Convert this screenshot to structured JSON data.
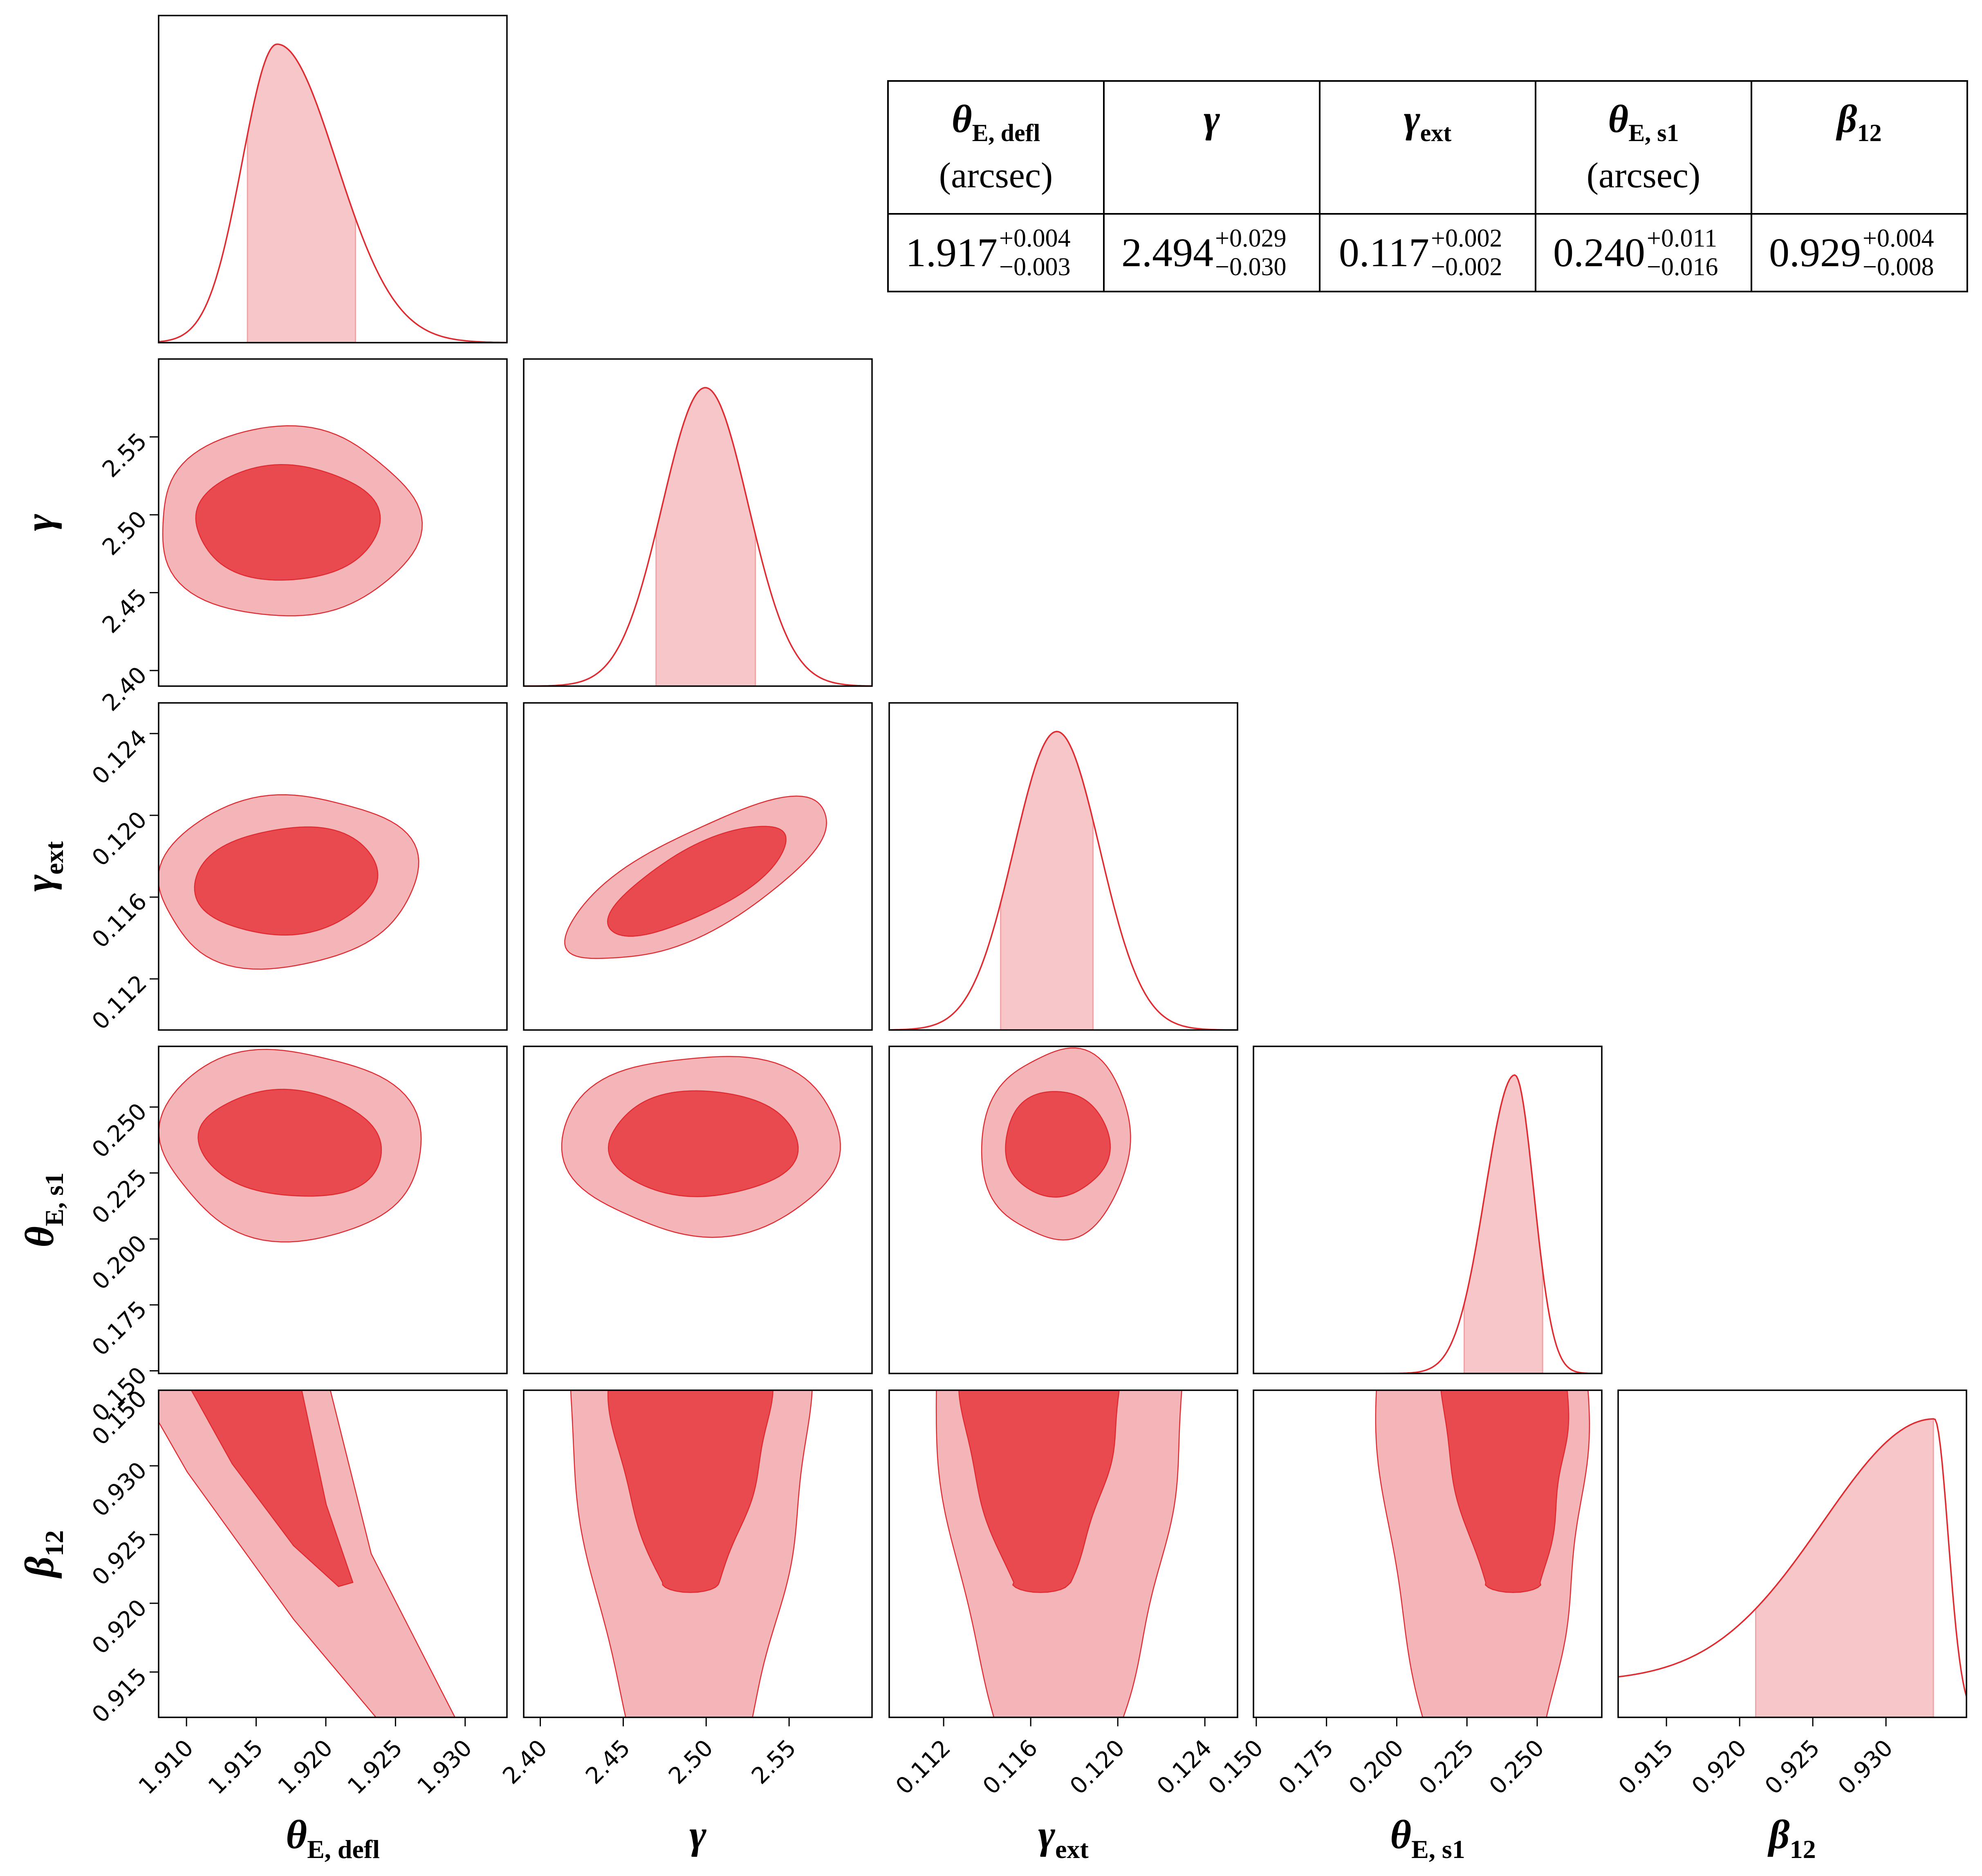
{
  "chart_data": {
    "type": "corner",
    "parameters": [
      {
        "id": "theta_E_defl",
        "symbol": "θ",
        "subscript": "E, defl",
        "range": [
          1.908,
          1.933
        ],
        "ticks": [
          "1.910",
          "1.915",
          "1.920",
          "1.925",
          "1.930"
        ],
        "tick_values": [
          1.91,
          1.915,
          1.92,
          1.925,
          1.93
        ],
        "median": 1.917,
        "upper_err": "+0.004",
        "lower_err": "−0.003",
        "unit": "(arcsec)",
        "shade": [
          1.9143,
          1.9222
        ],
        "peak": 1.9165,
        "skew": 1.6
      },
      {
        "id": "gamma",
        "symbol": "γ",
        "subscript": "",
        "range": [
          2.39,
          2.6
        ],
        "ticks": [
          "2.40",
          "2.45",
          "2.50",
          "2.55"
        ],
        "tick_values": [
          2.4,
          2.45,
          2.5,
          2.55
        ],
        "median": 2.494,
        "upper_err": "+0.029",
        "lower_err": "−0.030",
        "unit": "",
        "shade": [
          2.469,
          2.53
        ],
        "peak": 2.4995,
        "skew": 1.0
      },
      {
        "id": "gamma_ext",
        "symbol": "γ",
        "subscript": "ext",
        "range": [
          0.1095,
          0.1255
        ],
        "ticks": [
          "0.112",
          "0.116",
          "0.120",
          "0.124"
        ],
        "tick_values": [
          0.112,
          0.116,
          0.12,
          0.124
        ],
        "median": 0.117,
        "upper_err": "+0.002",
        "lower_err": "−0.002",
        "unit": "",
        "shade": [
          0.1146,
          0.1189
        ],
        "peak": 0.1172,
        "skew": 1.0
      },
      {
        "id": "theta_E_s1",
        "symbol": "θ",
        "subscript": "E, s1",
        "range": [
          0.149,
          0.273
        ],
        "ticks": [
          "0.150",
          "0.175",
          "0.200",
          "0.225",
          "0.250"
        ],
        "tick_values": [
          0.15,
          0.175,
          0.2,
          0.225,
          0.25
        ],
        "median": 0.24,
        "upper_err": "+0.011",
        "lower_err": "−0.016",
        "unit": "(arcsec)",
        "shade": [
          0.224,
          0.252
        ],
        "peak": 0.242,
        "skew": 0.55
      },
      {
        "id": "beta_12",
        "symbol": "β",
        "subscript": "12",
        "range": [
          0.9117,
          0.9355
        ],
        "ticks": [
          "0.915",
          "0.920",
          "0.925",
          "0.930"
        ],
        "tick_values": [
          0.915,
          0.92,
          0.925,
          0.93
        ],
        "median": 0.929,
        "upper_err": "+0.004",
        "lower_err": "−0.008",
        "unit": "",
        "shade": [
          0.921,
          0.9333
        ],
        "peak": 0.9333,
        "skew": 1.0
      }
    ],
    "y_axis_ticks": {
      "gamma": [
        "2.40",
        "2.45",
        "2.50",
        "2.55"
      ],
      "gamma_ext": [
        "0.112",
        "0.116",
        "0.120",
        "0.124"
      ],
      "theta_E_s1": [
        "0.150",
        "0.175",
        "0.200",
        "0.225",
        "0.250"
      ],
      "beta_12": [
        "0.915",
        "0.920",
        "0.925",
        "0.930"
      ]
    },
    "beta_12_top_tick_label": "0.150",
    "contour_levels": [
      "68%",
      "95%"
    ],
    "colors": {
      "outer": "#f4b5b8",
      "inner": "#e84a4f",
      "line": "#e02a30",
      "shade": "#f7c6c8"
    }
  },
  "summary_table": {
    "headers": [
      {
        "symbol": "θ",
        "sub": "E, defl",
        "unit": "(arcsec)"
      },
      {
        "symbol": "γ",
        "sub": "",
        "unit": ""
      },
      {
        "symbol": "γ",
        "sub": "ext",
        "unit": ""
      },
      {
        "symbol": "θ",
        "sub": "E, s1",
        "unit": "(arcsec)"
      },
      {
        "symbol": "β",
        "sub": "12",
        "unit": ""
      }
    ],
    "values": [
      {
        "val": "1.917",
        "plus": "+0.004",
        "minus": "−0.003"
      },
      {
        "val": "2.494",
        "plus": "+0.029",
        "minus": "−0.030"
      },
      {
        "val": "0.117",
        "plus": "+0.002",
        "minus": "−0.002"
      },
      {
        "val": "0.240",
        "plus": "+0.011",
        "minus": "−0.016"
      },
      {
        "val": "0.929",
        "plus": "+0.004",
        "minus": "−0.008"
      }
    ]
  }
}
